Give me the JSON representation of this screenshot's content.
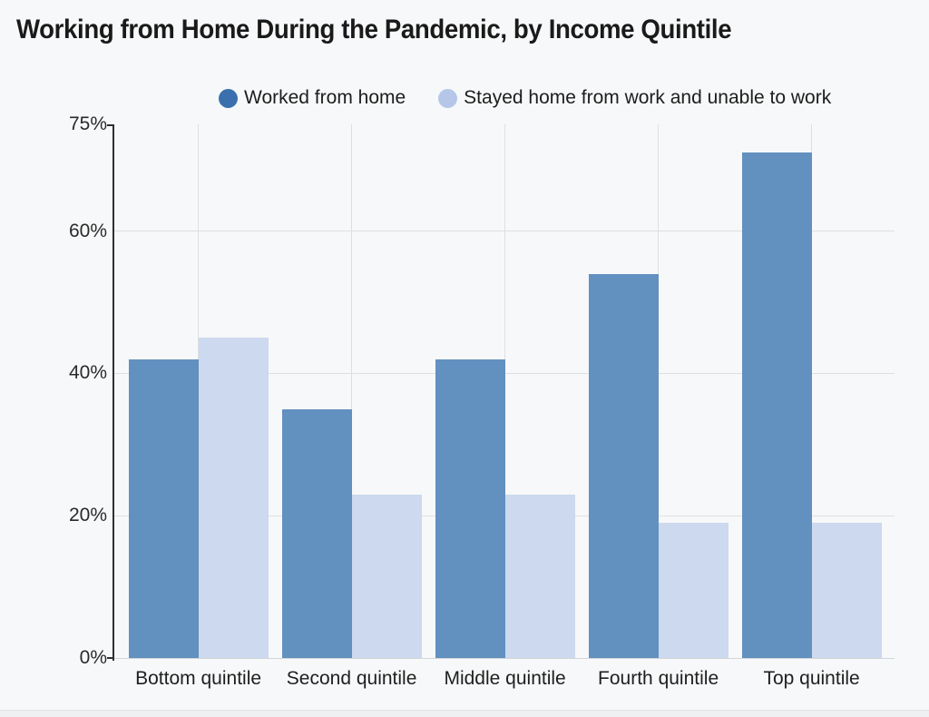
{
  "title": "Working from Home During the Pandemic, by Income Quintile",
  "colors": {
    "background": "#f7f8f9",
    "dark_series_bar": "#6290bf",
    "light_series_bar": "#ccd9ee",
    "dark_legend_dot": "#3a70ad",
    "light_legend_dot": "#b4c7e9"
  },
  "legend": {
    "items": [
      {
        "label": "Worked from home",
        "dot_color": "#3a70ad"
      },
      {
        "label": "Stayed home from work and unable to work",
        "dot_color": "#b4c7e9"
      }
    ]
  },
  "chart_data": {
    "type": "bar",
    "title": "Working from Home During the Pandemic, by Income Quintile",
    "categories": [
      "Bottom quintile",
      "Second quintile",
      "Middle quintile",
      "Fourth quintile",
      "Top quintile"
    ],
    "series": [
      {
        "name": "Worked from home",
        "color": "#6290bf",
        "values": [
          42,
          35,
          42,
          54,
          71
        ]
      },
      {
        "name": "Stayed home from work and unable to work",
        "color": "#ccd9ee",
        "values": [
          45,
          23,
          23,
          19,
          19
        ]
      }
    ],
    "xlabel": "",
    "ylabel": "",
    "ylim": [
      0,
      75
    ],
    "yticks": [
      {
        "value": 0,
        "label": "0%"
      },
      {
        "value": 20,
        "label": "20%"
      },
      {
        "value": 40,
        "label": "40%"
      },
      {
        "value": 60,
        "label": "60%"
      },
      {
        "value": 75,
        "label": "75%"
      }
    ],
    "gridlines_y": [
      20,
      40,
      60
    ],
    "grid": true,
    "legend_position": "top"
  }
}
